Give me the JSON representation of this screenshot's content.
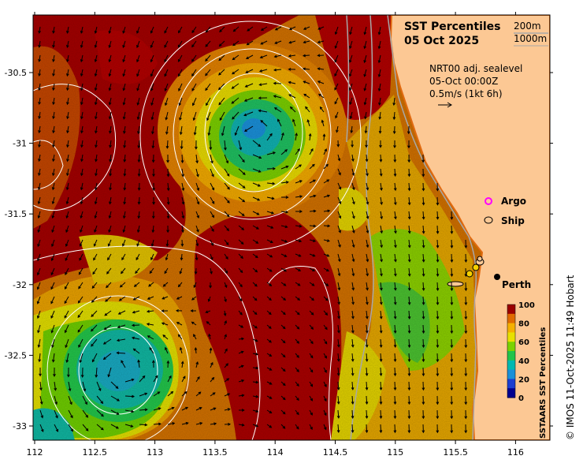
{
  "title": {
    "line1": "SST Percentiles",
    "line2": "05 Oct 2025"
  },
  "depth_legend": {
    "a": "200m",
    "b": "1000m"
  },
  "current_info": {
    "line1": "NRT00 adj. sealevel",
    "line2": "05-Oct 00:00Z",
    "line3": "0.5m/s (1kt 6h)"
  },
  "markers": {
    "argo": "Argo",
    "ship": "Ship",
    "city": "Perth"
  },
  "axes": {
    "x_ticks": [
      "112",
      "112.5",
      "113",
      "113.5",
      "114",
      "114.5",
      "115",
      "115.5",
      "116"
    ],
    "y_ticks": [
      "-30.5",
      "-31",
      "-31.5",
      "-32",
      "-32.5",
      "-33"
    ]
  },
  "colorbar": {
    "label": "SSTAARS SST Percentiles",
    "ticks": [
      "100",
      "80",
      "60",
      "40",
      "20",
      "0"
    ],
    "colors": [
      "#9b0000",
      "#e06a00",
      "#f5b000",
      "#e8e000",
      "#7ad200",
      "#22c44a",
      "#00b8b0",
      "#1a8fd8",
      "#1c3ed0",
      "#00008f"
    ]
  },
  "credit": "© IMOS 11-Oct-2025 11:49 Hobart",
  "colors": {
    "land": "#fcc894",
    "coast": "#e06a10",
    "contour": "#ffffff",
    "bathy": "#a8a8a8",
    "argo": "#ff00ff"
  }
}
